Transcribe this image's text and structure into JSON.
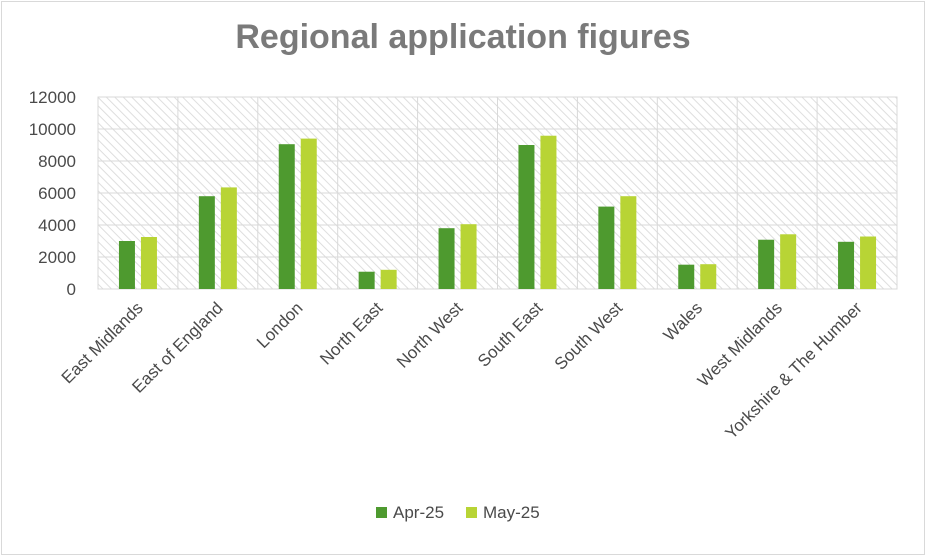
{
  "chart_data": {
    "type": "bar",
    "title": "Regional application figures",
    "categories": [
      "East Midlands",
      "East of England",
      "London",
      "North East",
      "North West",
      "South East",
      "South West",
      "Wales",
      "West Midlands",
      "Yorkshire & The Humber"
    ],
    "series": [
      {
        "name": "Apr-25",
        "color": "#4e9a2f",
        "values": [
          3000,
          5800,
          9050,
          1080,
          3800,
          9000,
          5150,
          1520,
          3080,
          2950
        ]
      },
      {
        "name": "May-25",
        "color": "#b8d435",
        "values": [
          3250,
          6350,
          9400,
          1200,
          4050,
          9580,
          5800,
          1550,
          3420,
          3280
        ]
      }
    ],
    "ylim": [
      0,
      12000
    ],
    "yticks": [
      "0",
      "2000",
      "4000",
      "6000",
      "8000",
      "10000",
      "12000"
    ],
    "grid": true,
    "legend_position": "bottom"
  }
}
